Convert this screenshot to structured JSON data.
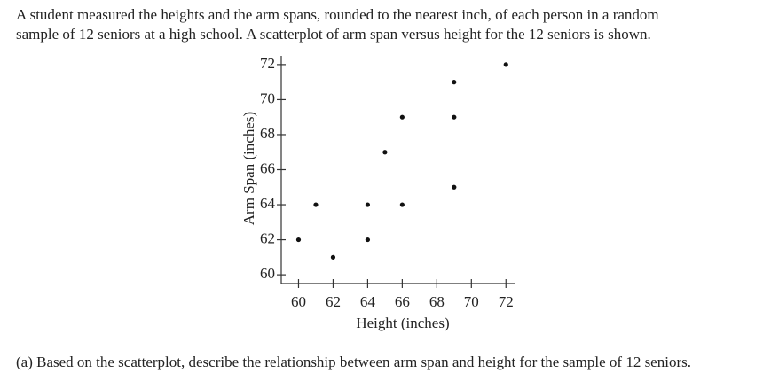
{
  "intro": [
    "A student measured the heights and the arm spans, rounded to the nearest inch, of each person in a random",
    "sample of 12 seniors at a high school. A scatterplot of arm span versus height for the 12 seniors is shown."
  ],
  "chart_data": {
    "type": "scatter",
    "x_label": "Height (inches)",
    "y_label": "Arm Span (inches)",
    "color": "#111111",
    "x": [
      60,
      61,
      62,
      64,
      64,
      65,
      66,
      66,
      69,
      69,
      69,
      72
    ],
    "values": [
      62,
      64,
      61,
      64,
      62,
      67,
      69,
      64,
      71,
      69,
      65,
      72
    ],
    "xlim": [
      59,
      72.5
    ],
    "ylim": [
      59.5,
      72.5
    ],
    "xticks": [
      60,
      62,
      64,
      66,
      68,
      70,
      72
    ],
    "yticks": [
      60,
      62,
      64,
      66,
      68,
      70,
      72
    ]
  },
  "question": "(a) Based on the scatterplot, describe the relationship between arm span and height for the sample of 12 seniors."
}
